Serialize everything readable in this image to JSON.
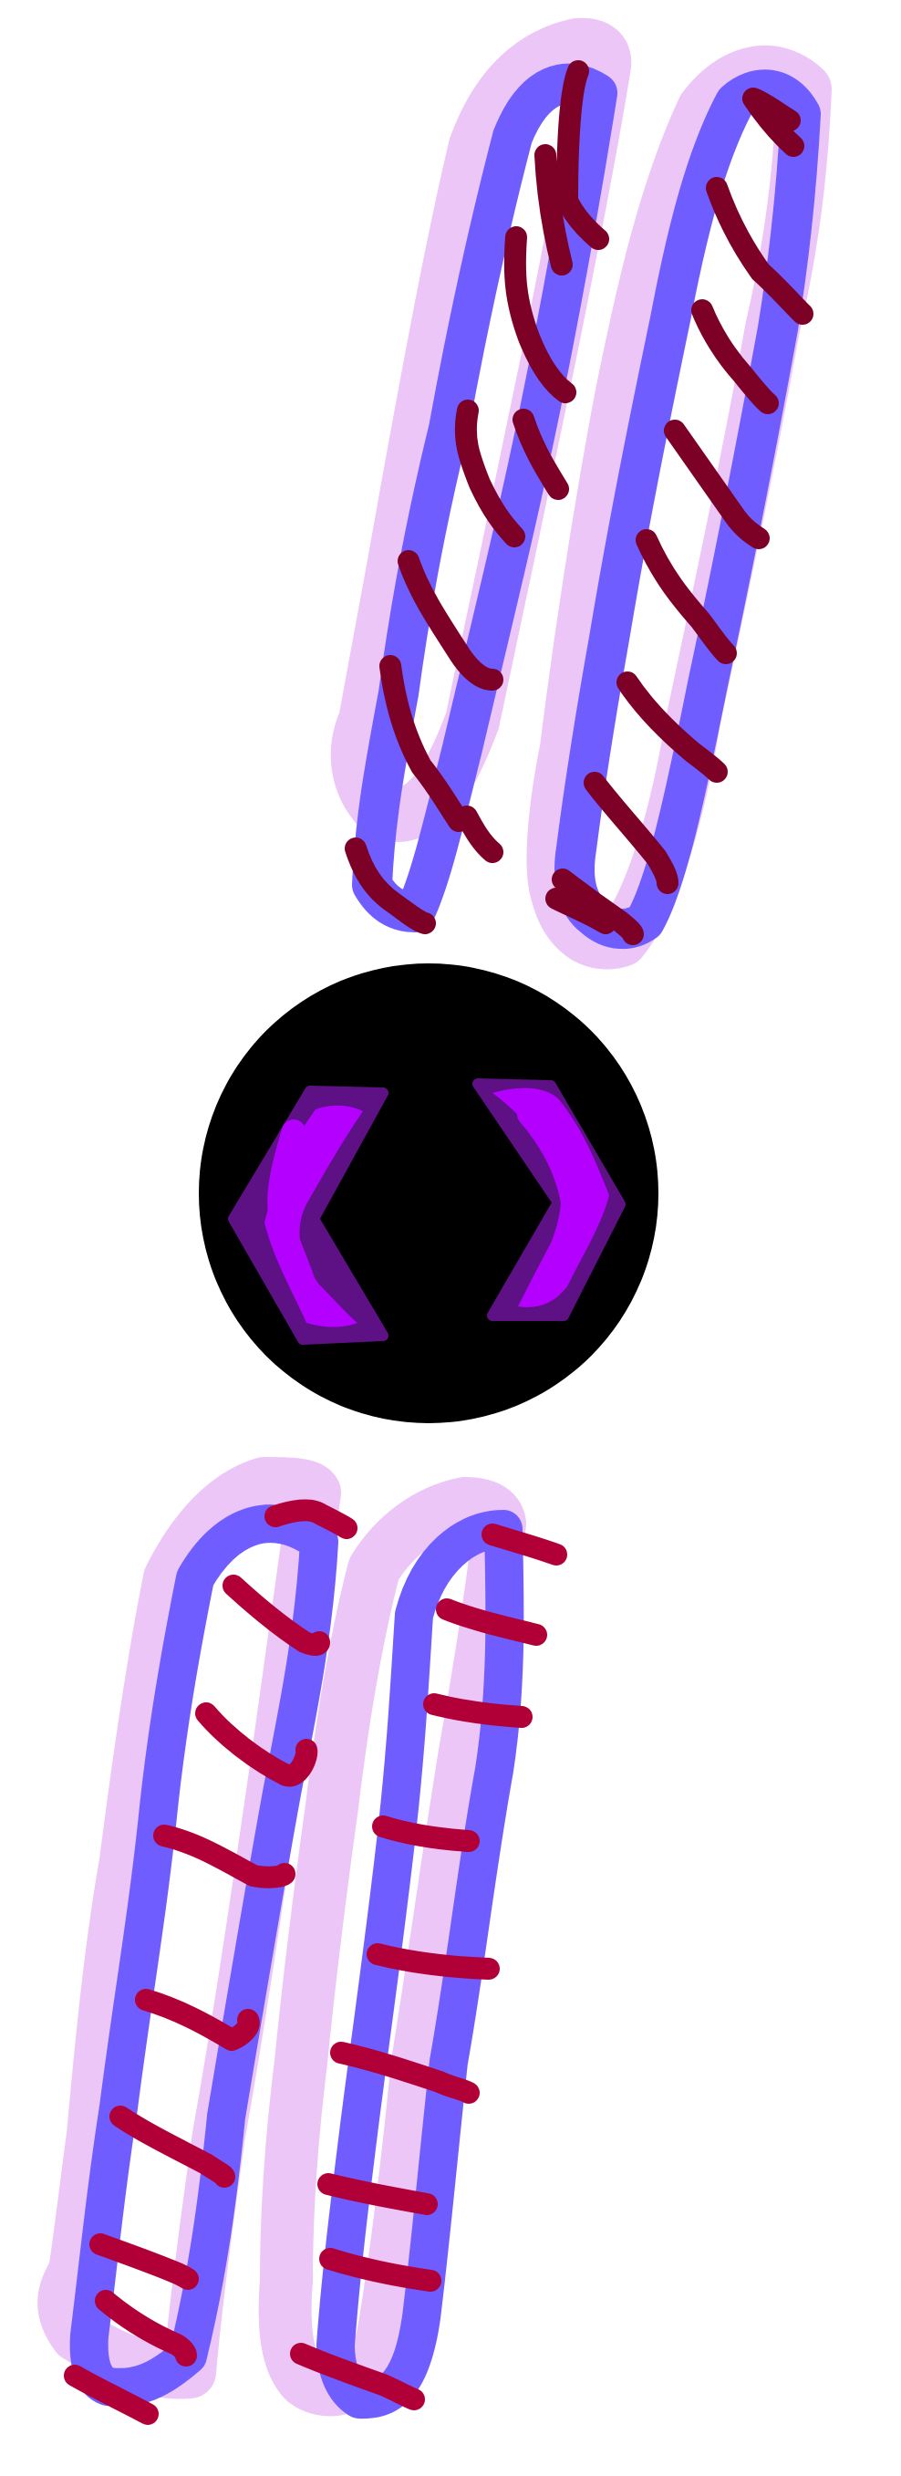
{
  "artwork": {
    "kind": "hand-drawn illustration",
    "subject_icon": "chromosome-pair-icon",
    "colors": {
      "background": "#ffffff",
      "halo": "#ecc6f7",
      "chromatid": "#6f5dff",
      "band_top": "#7d0026",
      "band_bottom": "#b10038",
      "centromere_disc": "#000000",
      "bracket_outline": "#5e1185",
      "bracket_fill": "#b300ff"
    },
    "groups": [
      {
        "name": "top-chromosome-pair",
        "band_count": 18
      },
      {
        "name": "center-code-brackets",
        "bracket_count": 2
      },
      {
        "name": "bottom-chromosome-pair",
        "band_count": 18
      }
    ]
  }
}
